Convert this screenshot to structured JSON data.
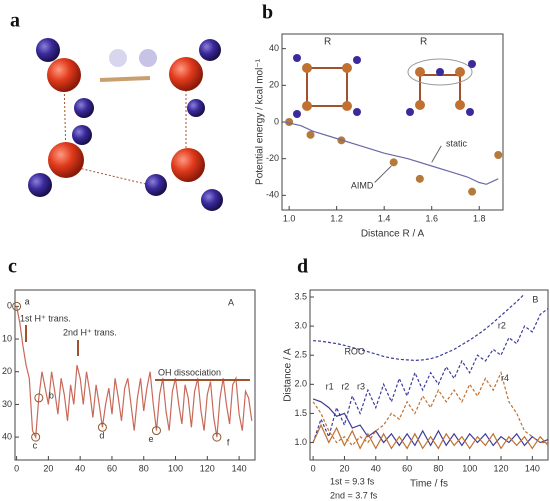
{
  "chart_data": [
    {
      "type": "diagram",
      "panel_label": "a"
    },
    {
      "type": "scatter",
      "panel_label": "b",
      "xlabel": "Distance R / A",
      "ylabel": "Potential energy / kcal mol⁻¹",
      "xlim": [
        0.97,
        1.9
      ],
      "ylim": [
        -48,
        48
      ],
      "xticks": [
        {
          "value": 1,
          "label": "1.0"
        },
        1.2,
        1.4,
        1.6,
        1.8
      ],
      "yticks": [
        40,
        20,
        0,
        -20,
        -40
      ],
      "series": [
        {
          "name": "AIMD",
          "style": "markers",
          "color": "#b5793a",
          "x": [
            1.0,
            1.09,
            1.22,
            1.44,
            1.55,
            1.77,
            1.88
          ],
          "values": [
            0,
            -7,
            -10,
            -22,
            -31,
            -38,
            -18
          ]
        },
        {
          "name": "static",
          "style": "line",
          "color": "#6a6aa8",
          "x": [
            0.98,
            1.05,
            1.1,
            1.2,
            1.3,
            1.4,
            1.5,
            1.6,
            1.7,
            1.75,
            1.8,
            1.83,
            1.88
          ],
          "values": [
            0,
            -2,
            -5,
            -9,
            -13,
            -17,
            -20,
            -24,
            -28,
            -30,
            -33,
            -34,
            -31
          ]
        }
      ],
      "annotations": [
        "R",
        "R"
      ]
    },
    {
      "type": "line",
      "panel_label": "c",
      "y_inverted": true,
      "xlim": [
        -1,
        150
      ],
      "ylim": [
        -5,
        47
      ],
      "xticks": [
        0,
        20,
        40,
        60,
        80,
        100,
        120,
        140
      ],
      "yticks": [
        0,
        10,
        20,
        30,
        40
      ],
      "x": [
        0,
        2,
        4,
        6,
        8,
        10,
        12,
        14,
        16,
        18,
        20,
        22,
        24,
        26,
        28,
        30,
        32,
        34,
        36,
        38,
        40,
        42,
        44,
        46,
        48,
        50,
        52,
        54,
        56,
        58,
        60,
        62,
        64,
        66,
        68,
        70,
        72,
        74,
        76,
        78,
        80,
        82,
        84,
        86,
        88,
        90,
        92,
        94,
        96,
        98,
        100,
        102,
        104,
        106,
        108,
        110,
        112,
        114,
        116,
        118,
        120,
        122,
        124,
        126,
        128,
        130,
        132,
        134,
        136,
        138,
        140,
        142,
        144,
        146,
        148
      ],
      "series": [
        {
          "name": null,
          "color": "#c8695a",
          "values": [
            0,
            5,
            12,
            18,
            22,
            38,
            40,
            28,
            20,
            25,
            30,
            20,
            26,
            33,
            22,
            27,
            35,
            24,
            30,
            18,
            22,
            30,
            20,
            26,
            34,
            24,
            30,
            37,
            30,
            25,
            33,
            22,
            28,
            35,
            25,
            22,
            30,
            38,
            28,
            22,
            32,
            25,
            20,
            30,
            38,
            27,
            22,
            32,
            38,
            26,
            22,
            30,
            36,
            24,
            28,
            37,
            26,
            22,
            32,
            38,
            27,
            23,
            34,
            40,
            28,
            22,
            30,
            36,
            24,
            22,
            33,
            38,
            26,
            28,
            35
          ]
        }
      ],
      "points": [
        "a",
        "b",
        "c",
        "d",
        "e",
        "f"
      ],
      "annotations": [
        "1st H⁺ trans.",
        "2nd H⁺ trans.",
        "OH dissociation",
        "A"
      ]
    },
    {
      "type": "line",
      "panel_label": "d",
      "xlabel": "Time / fs",
      "ylabel": "Distance / A",
      "xlim": [
        -2,
        150
      ],
      "ylim": [
        0.7,
        3.62
      ],
      "xticks": [
        0,
        20,
        40,
        60,
        80,
        100,
        120,
        140
      ],
      "yticks": [
        {
          "value": 1,
          "label": "1.0"
        },
        1.5,
        {
          "value": 2,
          "label": "2.0"
        },
        2.5,
        {
          "value": 3,
          "label": "3.0"
        },
        3.5
      ],
      "x": [
        0,
        5,
        10,
        15,
        20,
        25,
        30,
        35,
        40,
        45,
        50,
        55,
        60,
        65,
        70,
        75,
        80,
        85,
        90,
        95,
        100,
        105,
        110,
        115,
        120,
        125,
        130,
        135,
        140,
        145,
        150
      ],
      "series": [
        {
          "name": "ROO",
          "color": "#3b3b9a",
          "dash": true,
          "values": [
            2.75,
            2.74,
            2.72,
            2.7,
            2.67,
            2.63,
            2.6,
            2.56,
            2.52,
            2.48,
            2.45,
            2.43,
            2.42,
            2.41,
            2.42,
            2.44,
            2.48,
            2.54,
            2.6,
            2.68,
            2.76,
            2.85,
            2.95,
            3.06,
            3.18,
            3.3,
            3.42,
            3.55,
            null,
            null,
            null
          ]
        },
        {
          "name": "r2",
          "color": "#3b3b9a",
          "dash": true,
          "values": [
            1.0,
            1.4,
            1.1,
            1.6,
            1.3,
            1.8,
            1.5,
            1.9,
            1.6,
            2.0,
            1.7,
            2.1,
            1.8,
            2.2,
            1.9,
            2.2,
            2.0,
            2.3,
            2.1,
            2.4,
            2.2,
            2.5,
            2.4,
            2.6,
            2.5,
            2.8,
            2.7,
            3.0,
            2.9,
            3.2,
            3.3
          ]
        },
        {
          "name": "r3",
          "color": "#3b3b9a",
          "dash": false,
          "values": [
            1.75,
            1.7,
            1.6,
            1.45,
            1.5,
            1.25,
            1.3,
            1.1,
            1.2,
            1.0,
            1.15,
            0.95,
            1.15,
            0.95,
            1.2,
            0.95,
            1.2,
            0.95,
            1.15,
            0.95,
            1.15,
            1.0,
            1.15,
            0.95,
            1.1,
            1.0,
            1.15,
            0.95,
            1.1,
            1.0,
            1.05
          ]
        },
        {
          "name": "r4",
          "color": "#c07030",
          "dash": true,
          "values": [
            1.7,
            1.5,
            1.2,
            1.0,
            1.1,
            0.95,
            1.1,
            1.0,
            1.2,
            1.3,
            1.5,
            1.4,
            1.7,
            1.5,
            1.8,
            1.6,
            1.9,
            1.7,
            1.9,
            1.7,
            2.0,
            1.8,
            2.1,
            1.9,
            2.2,
            1.7,
            1.5,
            1.2,
            1.1,
            1.0,
            1.0
          ]
        },
        {
          "name": "r1",
          "color": "#c07030",
          "dash": false,
          "values": [
            1.0,
            1.3,
            1.0,
            1.25,
            0.95,
            1.2,
            0.9,
            1.15,
            0.9,
            1.15,
            0.9,
            1.1,
            0.9,
            1.15,
            0.9,
            1.1,
            0.9,
            1.15,
            0.95,
            1.1,
            0.9,
            1.1,
            0.95,
            1.15,
            0.9,
            1.1,
            0.95,
            1.1,
            0.9,
            1.1,
            0.95
          ]
        }
      ],
      "annotations": [
        "B",
        "1st = 9.3 fs",
        "2nd = 3.7 fs"
      ]
    }
  ]
}
